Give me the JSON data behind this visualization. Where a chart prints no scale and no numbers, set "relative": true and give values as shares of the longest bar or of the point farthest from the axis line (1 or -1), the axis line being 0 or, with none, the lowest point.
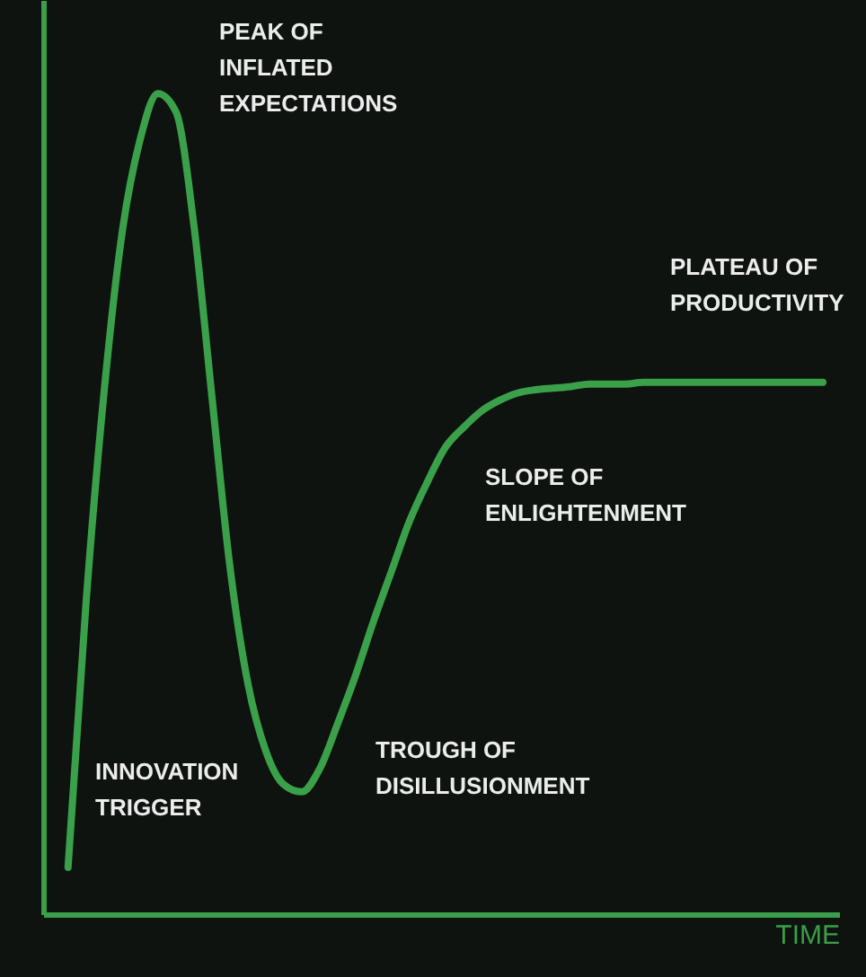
{
  "chart_data": {
    "type": "line",
    "relative": true,
    "xlabel": "TIME",
    "categories": [
      null,
      null,
      null,
      null,
      null,
      null,
      null,
      null,
      null,
      null,
      null,
      null,
      null,
      null,
      null,
      null,
      null,
      null,
      null,
      null,
      null,
      null,
      null,
      null,
      null,
      null,
      null,
      null,
      null,
      null,
      null,
      null,
      null,
      null,
      null,
      null,
      null,
      null,
      null,
      null,
      null,
      null,
      null
    ],
    "series": [
      {
        "color": "#3aa14a",
        "values": [
          0.057,
          0.379,
          0.635,
          0.829,
          0.943,
          1.0,
          0.978,
          0.84,
          0.632,
          0.425,
          0.282,
          0.199,
          0.158,
          0.149,
          0.177,
          0.232,
          0.291,
          0.357,
          0.418,
          0.479,
          0.527,
          0.569,
          0.593,
          0.613,
          0.626,
          0.635,
          0.639,
          0.641,
          0.643,
          0.646,
          0.646,
          0.646,
          0.648,
          0.648,
          0.648,
          0.648,
          0.648,
          0.648,
          0.648,
          0.648,
          0.648,
          0.648,
          0.648
        ]
      }
    ],
    "annotations": [
      "PEAK OF\nINFLATED\nEXPECTATIONS",
      "PLATEAU OF\nPRODUCTIVITY",
      "SLOPE OF\nENLIGHTENMENT",
      "TROUGH OF\nDISILLUSIONMENT",
      "INNOVATION\nTRIGGER"
    ],
    "grid": false,
    "marker": "none",
    "line_style": "solid"
  }
}
